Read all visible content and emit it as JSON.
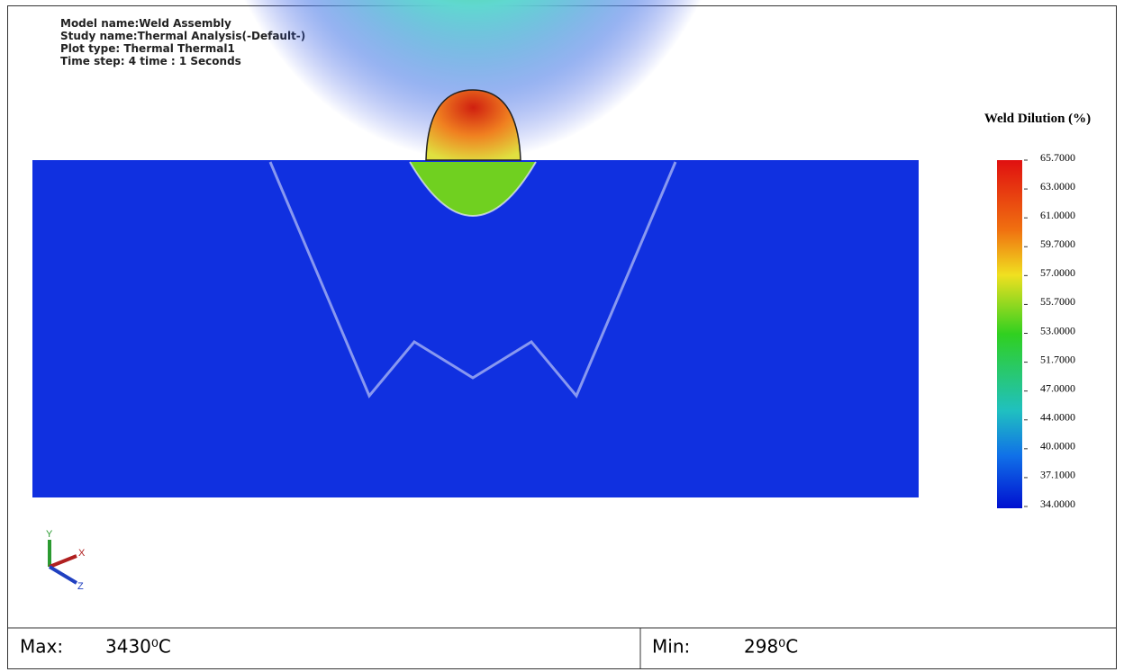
{
  "header": {
    "lines": [
      "Model name:Weld Assembly",
      "Study name:Thermal Analysis(-Default-)",
      "Plot type: Thermal Thermal1",
      "Time step: 4   time : 1 Seconds"
    ]
  },
  "legend": {
    "title": "Weld Dilution (%)",
    "labels": [
      "65.7000",
      "63.0000",
      "61.0000",
      "59.7000",
      "57.0000",
      "55.7000",
      "53.0000",
      "51.7000",
      "47.0000",
      "44.0000",
      "40.0000",
      "37.1000",
      "34.0000"
    ]
  },
  "triad": {
    "x": "X",
    "y": "Y",
    "z": "Z"
  },
  "footer": {
    "max_label": "Max:",
    "max_value": "3430⁰C",
    "min_label": "Min:",
    "min_value": "298⁰C"
  }
}
